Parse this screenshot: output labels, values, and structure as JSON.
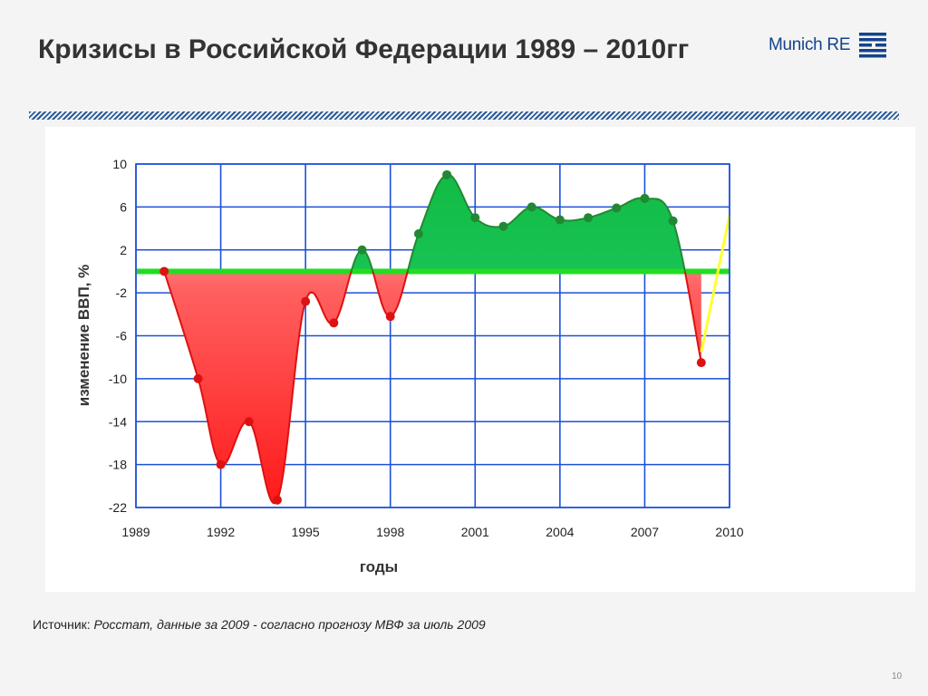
{
  "slide": {
    "title": "Кризисы в Российской Федерации 1989 – 2010гг",
    "logo_text": "Munich RE",
    "source_label": "Источник:",
    "source_text": "Росстат, данные за 2009 - согласно прогнозу МВФ за июль 2009",
    "page_number": "10"
  },
  "colors": {
    "baseline": "#22dd22",
    "negative_fill": "#ff1a1a",
    "negative_line": "#dd1111",
    "positive_fill": "#11bb44",
    "positive_light": "#80ffc0",
    "positive_line": "#228833",
    "forecast": "#ffff33",
    "grid": "#1c50d8",
    "brand": "#14438a"
  },
  "chart_data": {
    "type": "area",
    "xlabel": "годы",
    "ylabel": "изменение ВВП, %",
    "xlim": [
      1989,
      2010
    ],
    "ylim": [
      -22,
      10
    ],
    "x_ticks": [
      "1989",
      "1992",
      "1995",
      "1998",
      "2001",
      "2004",
      "2007",
      "2010"
    ],
    "y_ticks": [
      "10",
      "6",
      "2",
      "-2",
      "-6",
      "-10",
      "-14",
      "-18",
      "-22"
    ],
    "baseline_value": 0,
    "grid": true,
    "series": [
      {
        "x": [
          1990,
          1991.2,
          1992,
          1993,
          1994,
          1995,
          1996,
          1997,
          1998,
          1999,
          2000,
          2001,
          2002,
          2003,
          2004,
          2005,
          2006,
          2007,
          2008,
          2009
        ],
        "values": [
          0,
          -10,
          -18,
          -14,
          -21.3,
          -2.8,
          -4.8,
          2,
          -4.2,
          3.5,
          9,
          5,
          4.2,
          6,
          4.8,
          5,
          5.9,
          6.8,
          4.7,
          -8.5
        ]
      }
    ],
    "forecast": {
      "x": [
        2009,
        2010
      ],
      "values": [
        -7.5,
        5.2
      ]
    }
  }
}
